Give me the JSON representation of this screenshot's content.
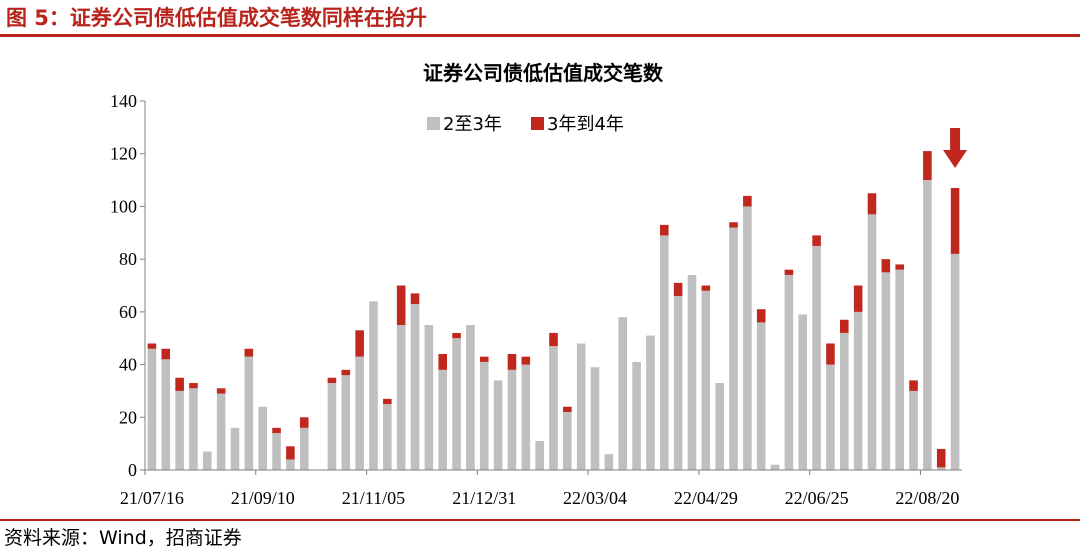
{
  "figure": {
    "caption": "图 5：证券公司债低估值成交笔数同样在抬升",
    "source": "资料来源：Wind，招商证券"
  },
  "colors": {
    "accent": "#b8241c",
    "series_a": "#bfbfbf",
    "series_b": "#c0281f",
    "axis": "#808080"
  },
  "chart_data": {
    "type": "bar",
    "stacked": true,
    "title": "证券公司债低估值成交笔数",
    "ylim": [
      0,
      140
    ],
    "yticks": [
      0,
      20,
      40,
      60,
      80,
      100,
      120,
      140
    ],
    "x_tick_labels": [
      "21/07/16",
      "21/09/10",
      "21/11/05",
      "21/12/31",
      "22/03/04",
      "22/04/29",
      "22/06/25",
      "22/08/20"
    ],
    "legend_position": "top-center",
    "annotation": "down-arrow-over-last-bar",
    "series": [
      {
        "name": "2至3年",
        "values": [
          46,
          42,
          30,
          31,
          7,
          29,
          16,
          43,
          24,
          14,
          4,
          16,
          0,
          33,
          36,
          43,
          64,
          25,
          55,
          63,
          55,
          38,
          50,
          55,
          41,
          34,
          38,
          40,
          11,
          47,
          22,
          48,
          39,
          6,
          58,
          41,
          51,
          89,
          66,
          74,
          68,
          33,
          92,
          100,
          56,
          2,
          74,
          59,
          85,
          40,
          52,
          60,
          97,
          75,
          76,
          30,
          110,
          1,
          82
        ]
      },
      {
        "name": "3年到4年",
        "values": [
          2,
          4,
          5,
          2,
          0,
          2,
          0,
          3,
          0,
          2,
          5,
          4,
          0,
          2,
          2,
          10,
          0,
          2,
          15,
          4,
          0,
          6,
          2,
          0,
          2,
          0,
          6,
          3,
          0,
          5,
          2,
          0,
          0,
          0,
          0,
          0,
          0,
          4,
          5,
          0,
          2,
          0,
          2,
          4,
          5,
          0,
          2,
          0,
          4,
          8,
          5,
          10,
          8,
          5,
          2,
          4,
          11,
          7,
          25
        ]
      }
    ]
  }
}
